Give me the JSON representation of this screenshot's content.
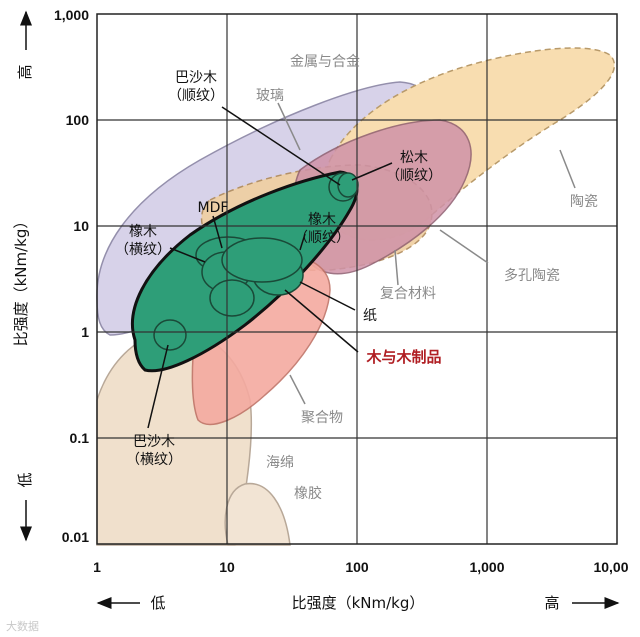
{
  "chart_data": {
    "type": "scatter",
    "title": "",
    "xlabel": "比强度（kNm/kg）",
    "ylabel": "比强度（kNm/kg）",
    "x_scale": "log",
    "y_scale": "log",
    "xlim": [
      1,
      10000
    ],
    "ylim": [
      0.01,
      1000
    ],
    "grid": true,
    "x_ticks": [
      "1",
      "10",
      "100",
      "1,000",
      "10,00"
    ],
    "y_ticks": [
      "1,000",
      "100",
      "10",
      "1",
      "0.1",
      "0.01"
    ],
    "x_low_label": "低",
    "x_high_label": "高",
    "y_low_label": "低",
    "y_high_label": "高",
    "regions": [
      {
        "name": "金属与合金",
        "x_range": [
          1,
          300
        ],
        "y_range": [
          1,
          150
        ],
        "color": "#d5d0e8"
      },
      {
        "name": "陶瓷",
        "x_range": [
          60,
          8000
        ],
        "y_range": [
          3,
          250
        ],
        "color": "#f8ddb0"
      },
      {
        "name": "多孔陶瓷",
        "x_range": [
          8,
          250
        ],
        "y_range": [
          3,
          60
        ],
        "color": "#f0cfa0"
      },
      {
        "name": "复合材料",
        "x_range": [
          30,
          250
        ],
        "y_range": [
          4,
          70
        ],
        "color": "#cf92a8"
      },
      {
        "name": "聚合物",
        "x_range": [
          6,
          100
        ],
        "y_range": [
          0.1,
          10
        ],
        "color": "#f4aaa0"
      },
      {
        "name": "海绵",
        "x_range": [
          1,
          30
        ],
        "y_range": [
          0.01,
          2
        ],
        "color": "#f0e0cc"
      },
      {
        "name": "橡胶",
        "x_range": [
          8,
          60
        ],
        "y_range": [
          0.01,
          0.05
        ],
        "color": "#f2e4d4"
      },
      {
        "name": "木与木制品",
        "x_range": [
          3,
          100
        ],
        "y_range": [
          0.5,
          30
        ],
        "color": "#2e9e78"
      }
    ],
    "annotations": [
      {
        "label": "金属与合金",
        "class": "grey"
      },
      {
        "label": "玻璃",
        "class": "grey"
      },
      {
        "label": "陶瓷",
        "class": "grey"
      },
      {
        "label": "多孔陶瓷",
        "class": "grey"
      },
      {
        "label": "复合材料",
        "class": "grey"
      },
      {
        "label": "聚合物",
        "class": "grey"
      },
      {
        "label": "海绵",
        "class": "grey"
      },
      {
        "label": "橡胶",
        "class": "grey"
      },
      {
        "label": "巴沙木",
        "label2": "（顺纹）",
        "class": "black"
      },
      {
        "label": "松木",
        "label2": "（顺纹）",
        "class": "black"
      },
      {
        "label": "MDF",
        "class": "black"
      },
      {
        "label": "橡木",
        "label2": "（横纹）",
        "class": "black"
      },
      {
        "label": "橡木",
        "label2": "（顺纹）",
        "class": "black"
      },
      {
        "label": "纸",
        "class": "black"
      },
      {
        "label": "木与木制品",
        "class": "red"
      },
      {
        "label": "巴沙木",
        "label2": "（横纹）",
        "class": "black"
      }
    ]
  },
  "watermark": "大数据"
}
